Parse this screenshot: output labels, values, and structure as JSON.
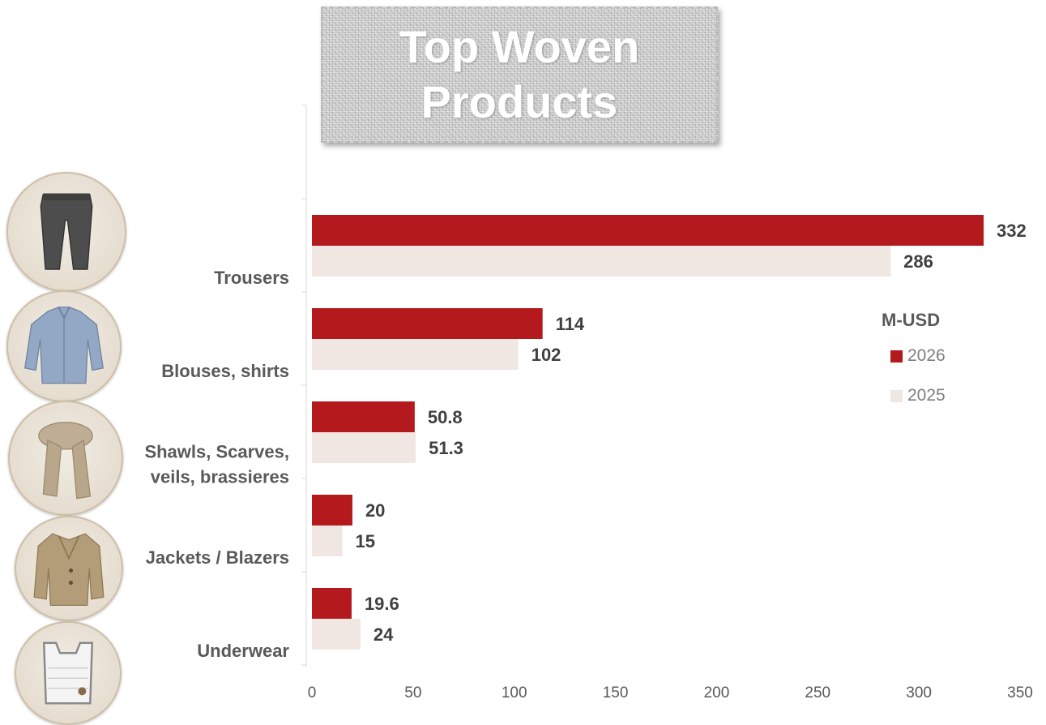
{
  "title_lines": [
    "Top Woven",
    "Products"
  ],
  "colors": {
    "series_2026": "#b4191e",
    "series_2025": "#f1e7e2",
    "axis": "#d9d9d9"
  },
  "legend": {
    "title": "M-USD",
    "entries": [
      "2026",
      "2025"
    ]
  },
  "images": [
    "trousers-icon",
    "shirt-icon",
    "scarf-icon",
    "jacket-icon",
    "underwear-icon"
  ],
  "chart_data": {
    "type": "bar",
    "orientation": "horizontal",
    "title": "Top Woven Products",
    "categories": [
      "Trousers",
      "Blouses, shirts",
      "Shawls, Scarves, veils, brassieres",
      "Jackets / Blazers",
      "Underwear"
    ],
    "category_label_lines": [
      [
        "Trousers"
      ],
      [
        "Blouses, shirts"
      ],
      [
        "Shawls, Scarves,",
        "veils, brassieres"
      ],
      [
        "Jackets / Blazers"
      ],
      [
        "Underwear"
      ]
    ],
    "series": [
      {
        "name": "2026",
        "values": [
          332,
          114,
          50.8,
          20,
          19.6
        ]
      },
      {
        "name": "2025",
        "values": [
          286,
          102,
          51.3,
          15,
          24
        ]
      }
    ],
    "value_labels": [
      [
        "332",
        "114",
        "50.8",
        "20",
        "19.6"
      ],
      [
        "286",
        "102",
        "51.3",
        "15",
        "24"
      ]
    ],
    "xlim": [
      0,
      350
    ],
    "xticks": [
      "0",
      "50",
      "100",
      "150",
      "200",
      "250",
      "300",
      "350"
    ],
    "xlabel": "",
    "ylabel": "",
    "unit": "M-USD",
    "grid": false,
    "legend_position": "right"
  }
}
